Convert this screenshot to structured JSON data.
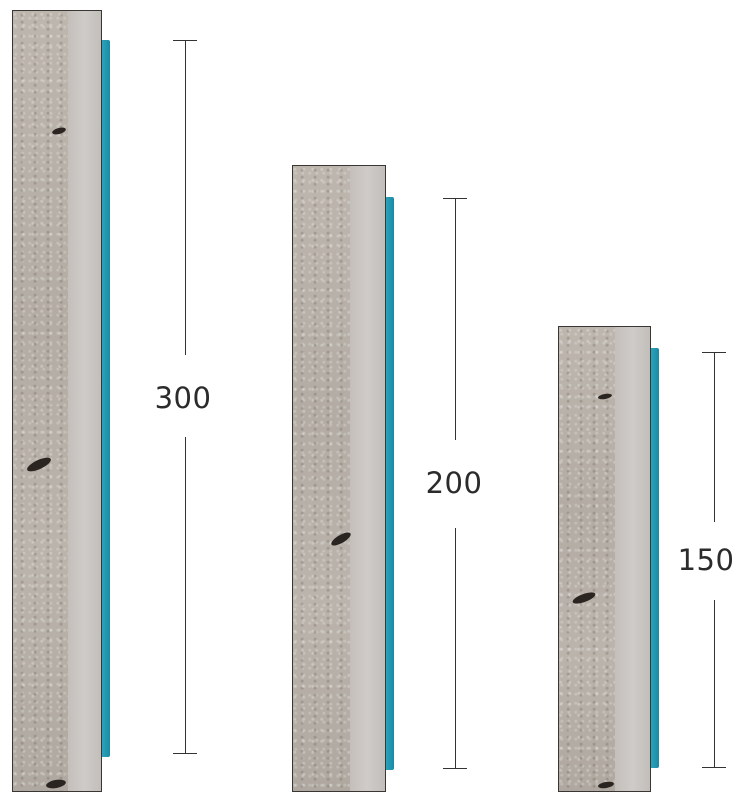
{
  "posts": [
    {
      "label": "300"
    },
    {
      "label": "200"
    },
    {
      "label": "150"
    }
  ],
  "colors": {
    "concrete": "#b8b1aa",
    "face": "#cfcbc8",
    "accent_strip": "#2aa3bd",
    "dimension_line": "#333333"
  }
}
